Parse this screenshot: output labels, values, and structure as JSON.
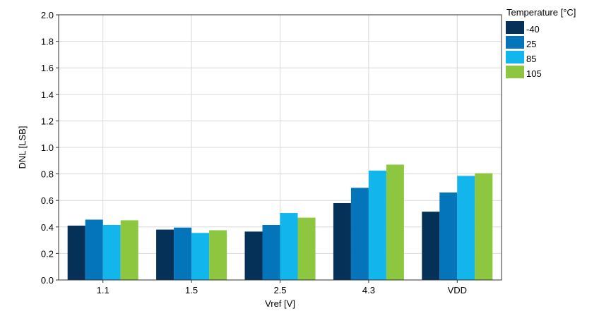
{
  "chart_data": {
    "type": "bar",
    "categories": [
      "1.1",
      "1.5",
      "2.5",
      "4.3",
      "VDD"
    ],
    "series": [
      {
        "name": "-40",
        "color": "#053158",
        "values": [
          0.41,
          0.38,
          0.365,
          0.58,
          0.515
        ]
      },
      {
        "name": "25",
        "color": "#0474bb",
        "values": [
          0.455,
          0.395,
          0.415,
          0.695,
          0.66
        ]
      },
      {
        "name": "85",
        "color": "#13b6ec",
        "values": [
          0.415,
          0.355,
          0.505,
          0.825,
          0.785
        ]
      },
      {
        "name": "105",
        "color": "#8dc63f",
        "values": [
          0.45,
          0.375,
          0.47,
          0.87,
          0.805
        ]
      }
    ],
    "xlabel": "Vref [V]",
    "ylabel": "DNL [LSB]",
    "ylim": [
      0,
      2.0
    ],
    "yticks": [
      "0.0",
      "0.2",
      "0.4",
      "0.6",
      "0.8",
      "1.0",
      "1.2",
      "1.4",
      "1.6",
      "1.8",
      "2.0"
    ],
    "legend_title": "Temperature [°C]",
    "legend_position": "right",
    "grid": true
  }
}
